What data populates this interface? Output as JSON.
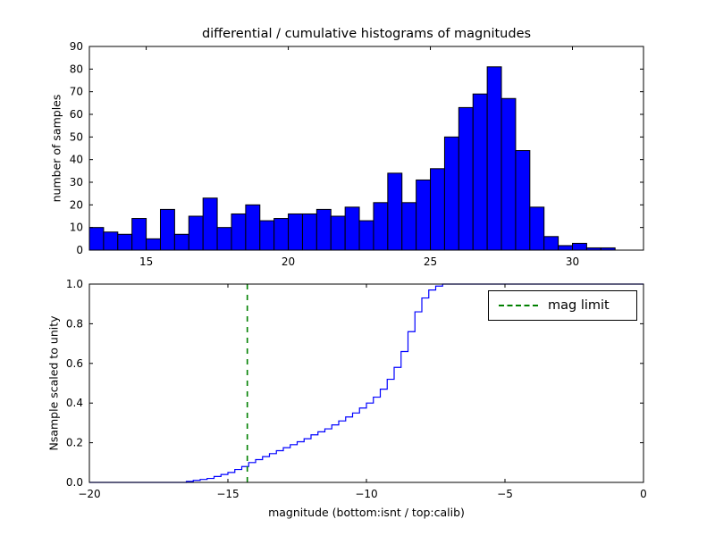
{
  "figure": {
    "background": "#ffffff"
  },
  "chart_data": [
    {
      "type": "bar",
      "role": "differential-histogram",
      "title": "differential / cumulative histograms of magnitudes",
      "ylabel": "number of samples",
      "bar_color": "#0000ff",
      "bar_edge_color": "#000000",
      "xlim": [
        13.0,
        32.5
      ],
      "ylim": [
        0,
        90
      ],
      "xticks": [
        15,
        20,
        25,
        30
      ],
      "yticks": [
        0,
        10,
        20,
        30,
        40,
        50,
        60,
        70,
        80,
        90
      ],
      "bin_start": 13.0,
      "bin_width": 0.5,
      "counts": [
        10,
        8,
        7,
        14,
        5,
        18,
        7,
        15,
        23,
        10,
        16,
        20,
        13,
        14,
        16,
        16,
        18,
        15,
        19,
        13,
        21,
        34,
        21,
        31,
        36,
        50,
        63,
        69,
        81,
        67,
        44,
        19,
        6,
        2,
        3,
        1,
        1
      ]
    },
    {
      "type": "line",
      "role": "cumulative-histogram",
      "xlabel": "magnitude (bottom:isnt / top:calib)",
      "ylabel": "Nsample scaled to unity",
      "line_color": "#0000ff",
      "xlim": [
        -20,
        0
      ],
      "ylim": [
        0,
        1.0
      ],
      "xticks": [
        -20,
        -15,
        -10,
        -5,
        0
      ],
      "yticks": [
        0.0,
        0.2,
        0.4,
        0.6,
        0.8,
        1.0
      ],
      "points": [
        [
          -16.5,
          0.005
        ],
        [
          -16.25,
          0.01
        ],
        [
          -16.0,
          0.015
        ],
        [
          -15.75,
          0.02
        ],
        [
          -15.5,
          0.03
        ],
        [
          -15.25,
          0.04
        ],
        [
          -15.0,
          0.05
        ],
        [
          -14.75,
          0.065
        ],
        [
          -14.5,
          0.08
        ],
        [
          -14.25,
          0.1
        ],
        [
          -14.0,
          0.115
        ],
        [
          -13.75,
          0.13
        ],
        [
          -13.5,
          0.145
        ],
        [
          -13.25,
          0.16
        ],
        [
          -13.0,
          0.175
        ],
        [
          -12.75,
          0.19
        ],
        [
          -12.5,
          0.205
        ],
        [
          -12.25,
          0.22
        ],
        [
          -12.0,
          0.24
        ],
        [
          -11.75,
          0.255
        ],
        [
          -11.5,
          0.27
        ],
        [
          -11.25,
          0.29
        ],
        [
          -11.0,
          0.31
        ],
        [
          -10.75,
          0.33
        ],
        [
          -10.5,
          0.35
        ],
        [
          -10.25,
          0.375
        ],
        [
          -10.0,
          0.4
        ],
        [
          -9.75,
          0.43
        ],
        [
          -9.5,
          0.47
        ],
        [
          -9.25,
          0.52
        ],
        [
          -9.0,
          0.58
        ],
        [
          -8.75,
          0.66
        ],
        [
          -8.5,
          0.76
        ],
        [
          -8.25,
          0.86
        ],
        [
          -8.0,
          0.93
        ],
        [
          -7.75,
          0.97
        ],
        [
          -7.5,
          0.99
        ],
        [
          -7.25,
          1.0
        ]
      ],
      "mag_limit": {
        "x": -14.3,
        "color": "#008000",
        "style": "dashed",
        "label": "mag limit"
      }
    }
  ]
}
